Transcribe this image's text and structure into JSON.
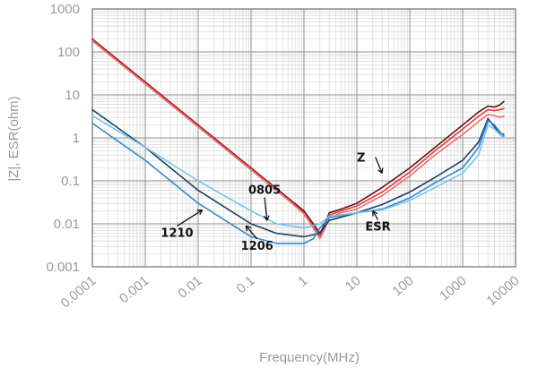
{
  "chart_data": {
    "type": "line",
    "xlabel": "Frequency(MHz)",
    "ylabel": "|Z|, ESR(ohm)",
    "x_scale": "log",
    "y_scale": "log",
    "xlim": [
      0.0001,
      10000
    ],
    "ylim": [
      0.001,
      1000
    ],
    "x_ticks": [
      "0.0001",
      "0.001",
      "0.01",
      "0.1",
      "1",
      "10",
      "100",
      "1000",
      "10000"
    ],
    "y_ticks": [
      "0.001",
      "0.01",
      "0.1",
      "1",
      "10",
      "100",
      "1000"
    ],
    "grid": true,
    "series": [
      {
        "group": "Z",
        "color": "#5a1418",
        "x": [
          0.0001,
          0.001,
          0.01,
          0.1,
          0.5,
          1,
          1.5,
          2,
          2.5,
          3,
          5,
          10,
          30,
          100,
          300,
          1000,
          2000,
          3000,
          4000,
          5000,
          6000
        ],
        "y": [
          200,
          20,
          2,
          0.2,
          0.04,
          0.02,
          0.01,
          0.006,
          0.01,
          0.018,
          0.022,
          0.03,
          0.07,
          0.2,
          0.6,
          2,
          4,
          5.5,
          5.2,
          5.8,
          7
        ]
      },
      {
        "group": "Z",
        "color": "#e83a40",
        "x": [
          0.0001,
          0.001,
          0.01,
          0.1,
          0.5,
          1,
          1.5,
          2,
          2.5,
          3,
          5,
          10,
          30,
          100,
          300,
          1000,
          2000,
          3000,
          4000,
          5000,
          6000
        ],
        "y": [
          190,
          19,
          1.9,
          0.19,
          0.038,
          0.018,
          0.009,
          0.005,
          0.009,
          0.016,
          0.02,
          0.026,
          0.055,
          0.16,
          0.5,
          1.6,
          3.2,
          4.5,
          4.3,
          4.5,
          4.8
        ]
      },
      {
        "group": "Z",
        "color": "#f06d70",
        "x": [
          0.0001,
          0.001,
          0.01,
          0.1,
          0.5,
          1,
          1.5,
          2,
          2.5,
          3,
          5,
          10,
          30,
          100,
          300,
          1000,
          2000,
          3000,
          4000,
          5000,
          6000
        ],
        "y": [
          180,
          18,
          1.8,
          0.18,
          0.036,
          0.017,
          0.008,
          0.0045,
          0.008,
          0.014,
          0.018,
          0.022,
          0.045,
          0.13,
          0.4,
          1.2,
          2.4,
          3.5,
          3.3,
          3.0,
          3.2
        ]
      },
      {
        "group": "ESR",
        "color": "#1e4060",
        "x": [
          0.0001,
          0.001,
          0.01,
          0.1,
          0.3,
          1,
          2,
          3,
          10,
          30,
          100,
          300,
          1000,
          2000,
          3000,
          4000,
          5000,
          6000
        ],
        "y": [
          4.5,
          0.6,
          0.06,
          0.01,
          0.006,
          0.005,
          0.006,
          0.012,
          0.018,
          0.028,
          0.055,
          0.12,
          0.3,
          0.8,
          2.8,
          1.8,
          1.3,
          1.2
        ]
      },
      {
        "group": "ESR",
        "color": "#2f8ad0",
        "x": [
          0.0001,
          0.001,
          0.01,
          0.1,
          0.3,
          1,
          1.5,
          2,
          3,
          10,
          30,
          100,
          300,
          1000,
          2000,
          3000,
          4000,
          5000,
          6000
        ],
        "y": [
          2.2,
          0.3,
          0.03,
          0.005,
          0.0035,
          0.0035,
          0.0045,
          0.008,
          0.014,
          0.018,
          0.022,
          0.04,
          0.09,
          0.2,
          0.6,
          2.5,
          2.0,
          1.4,
          1.1
        ]
      },
      {
        "group": "ESR",
        "color": "#74c6ee",
        "x": [
          0.0001,
          0.001,
          0.01,
          0.1,
          0.3,
          1,
          2,
          3,
          10,
          30,
          100,
          300,
          1000,
          2000,
          3000,
          4000,
          5000,
          6000
        ],
        "y": [
          3.3,
          0.6,
          0.1,
          0.02,
          0.01,
          0.008,
          0.01,
          0.015,
          0.018,
          0.021,
          0.035,
          0.07,
          0.15,
          0.4,
          2.0,
          1.6,
          1.2,
          1.0
        ]
      }
    ],
    "annotations": [
      {
        "text": "1210",
        "x": 0.004,
        "y": 0.005,
        "arrow_to": [
          0.012,
          0.021
        ]
      },
      {
        "text": "0805",
        "x": 0.18,
        "y": 0.05,
        "arrow_to": [
          0.2,
          0.012
        ]
      },
      {
        "text": "1206",
        "x": 0.13,
        "y": 0.0025,
        "arrow_to": [
          0.08,
          0.009
        ]
      },
      {
        "text": "Z",
        "x": 12,
        "y": 0.28,
        "arrow_to": [
          30,
          0.15
        ]
      },
      {
        "text": "ESR",
        "x": 25,
        "y": 0.007,
        "arrow_to": [
          20,
          0.02
        ]
      }
    ]
  }
}
